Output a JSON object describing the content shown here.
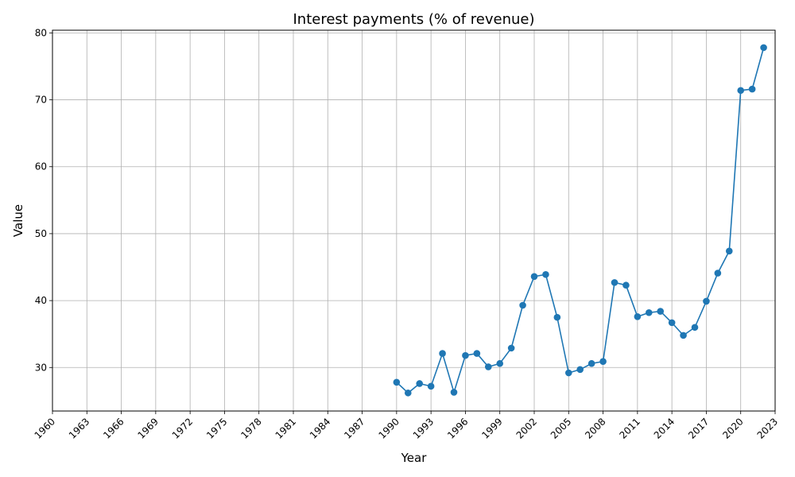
{
  "chart_data": {
    "type": "line",
    "title": "Interest payments (% of revenue)",
    "xlabel": "Year",
    "ylabel": "Value",
    "xlim": [
      1960,
      2023
    ],
    "ylim": [
      23.5,
      80.4
    ],
    "x_ticks": [
      1960,
      1963,
      1966,
      1969,
      1972,
      1975,
      1978,
      1981,
      1984,
      1987,
      1990,
      1993,
      1996,
      1999,
      2002,
      2005,
      2008,
      2011,
      2014,
      2017,
      2020,
      2023
    ],
    "y_ticks": [
      30,
      40,
      50,
      60,
      70,
      80
    ],
    "grid": true,
    "series_color": "#1f77b4",
    "marker": "circle",
    "x": [
      1990,
      1991,
      1992,
      1993,
      1994,
      1995,
      1996,
      1997,
      1998,
      1999,
      2000,
      2001,
      2002,
      2003,
      2004,
      2005,
      2006,
      2007,
      2008,
      2009,
      2010,
      2011,
      2012,
      2013,
      2014,
      2015,
      2016,
      2017,
      2018,
      2019,
      2020,
      2021,
      2022
    ],
    "values": [
      27.8,
      26.2,
      27.6,
      27.2,
      32.1,
      26.3,
      31.8,
      32.1,
      30.1,
      30.6,
      32.9,
      39.3,
      43.6,
      43.9,
      37.5,
      29.2,
      29.7,
      30.6,
      30.9,
      42.7,
      42.3,
      37.6,
      38.2,
      38.4,
      36.7,
      34.8,
      36.0,
      39.9,
      44.1,
      47.4,
      71.4,
      71.6,
      77.8
    ]
  }
}
